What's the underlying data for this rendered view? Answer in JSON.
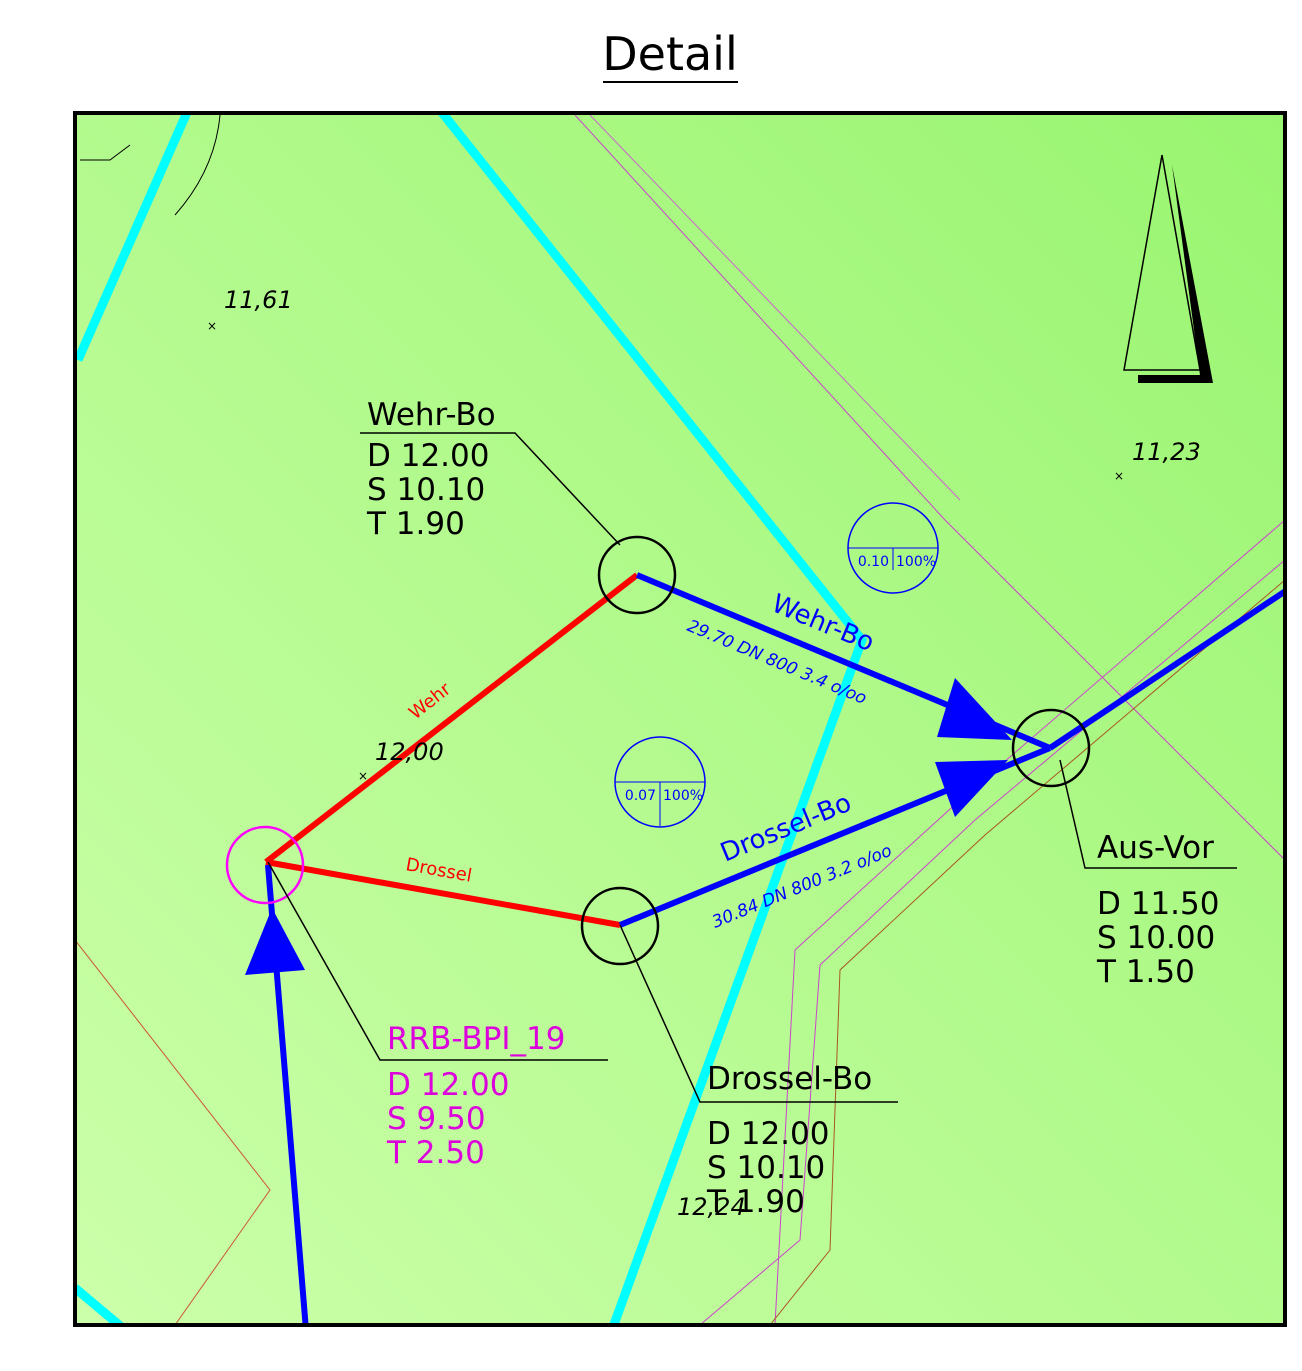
{
  "header": {
    "title": "Detail"
  },
  "spot_heights": [
    "11,61",
    "11,23",
    "12,00",
    "12,24"
  ],
  "nodes": [
    {
      "name": "Wehr-Bo",
      "lines": [
        "D 12.00",
        "S 10.10",
        "T 1.90"
      ]
    },
    {
      "name": "RRB-BPI_19",
      "lines": [
        "D 12.00",
        "S 9.50",
        "T 2.50"
      ]
    },
    {
      "name": "Drossel-Bo",
      "lines": [
        "D 12.00",
        "S 10.10",
        "T 1.90"
      ]
    },
    {
      "name": "Aus-Vor",
      "lines": [
        "D 11.50",
        "S 10.00",
        "T 1.50"
      ]
    }
  ],
  "pipes": [
    {
      "name": "Wehr-Bo",
      "info": "29.70 DN 800 3.4 o/oo"
    },
    {
      "name": "Drossel-Bo",
      "info": "30.84 DN 800 3.2 o/oo"
    }
  ],
  "overflows": [
    "Wehr",
    "Drossel"
  ],
  "fill_markers": [
    {
      "value": "0.10",
      "percent": "100%"
    },
    {
      "value": "0.07",
      "percent": "100%"
    }
  ]
}
